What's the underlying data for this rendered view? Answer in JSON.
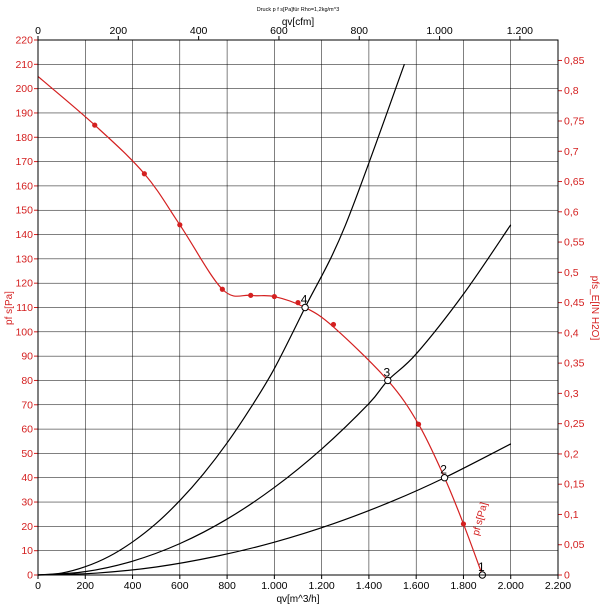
{
  "chart_data": {
    "type": "line",
    "title": "Druck p f s[Pa]für Rho=1,2kg/m^3",
    "xlabel": "qv[m^3/h]",
    "x2label": "qv[cfm]",
    "ylabel": "pf s[Pa]",
    "y2label": "pfs_E[IN H2O]",
    "xlim": [
      0,
      2200
    ],
    "ylim": [
      0,
      220
    ],
    "x2lim": [
      0,
      1294.9
    ],
    "y2lim": [
      0,
      0.8838
    ],
    "grid": true,
    "x_ticks": [
      "0",
      "200",
      "400",
      "600",
      "800",
      "1.000",
      "1.200",
      "1.400",
      "1.600",
      "1.800",
      "2.000",
      "2.200"
    ],
    "x2_ticks": [
      "0",
      "200",
      "400",
      "600",
      "800",
      "1.000",
      "1.200"
    ],
    "y_ticks": [
      "0",
      "10",
      "20",
      "30",
      "40",
      "50",
      "60",
      "70",
      "80",
      "90",
      "100",
      "110",
      "120",
      "130",
      "140",
      "150",
      "160",
      "170",
      "180",
      "190",
      "200",
      "210",
      "220"
    ],
    "y2_ticks": [
      "0",
      "0,05",
      "0,1",
      "0,15",
      "0,2",
      "0,25",
      "0,3",
      "0,35",
      "0,4",
      "0,45",
      "0,5",
      "0,55",
      "0,6",
      "0,65",
      "0,7",
      "0,75",
      "0,8",
      "0,85"
    ],
    "fan_curve": {
      "label": "pf s[Pa]",
      "color": "#d42020",
      "x": [
        0,
        240,
        450,
        600,
        780,
        900,
        1000,
        1130,
        1250,
        1480,
        1610,
        1720,
        1800,
        1880
      ],
      "y": [
        205,
        185,
        165,
        144,
        117.5,
        115,
        114.5,
        110,
        102,
        80,
        62,
        40,
        21,
        0
      ]
    },
    "fan_markers": {
      "x": [
        240,
        450,
        600,
        780,
        900,
        1000,
        1100,
        1250,
        1610,
        1800
      ],
      "y": [
        185,
        165,
        144,
        117.5,
        115,
        114.5,
        112,
        103,
        62,
        21
      ]
    },
    "system_curves": [
      {
        "x": [
          0,
          100,
          200,
          300,
          400,
          500,
          600,
          700,
          800,
          900,
          1000,
          1130,
          1300,
          1550
        ],
        "y": [
          0,
          0.8,
          3.4,
          7.6,
          13.6,
          21.2,
          30.6,
          41.6,
          54.3,
          68.8,
          84.9,
          110,
          143.7,
          210
        ]
      },
      {
        "x": [
          0,
          200,
          400,
          600,
          800,
          1000,
          1200,
          1400,
          1480,
          1600,
          1800,
          2000
        ],
        "y": [
          0,
          1.4,
          5.7,
          12.9,
          23,
          36,
          51.8,
          70.5,
          80,
          90.9,
          115.5,
          144
        ]
      },
      {
        "x": [
          0,
          250,
          500,
          750,
          1000,
          1250,
          1500,
          1720,
          2000
        ],
        "y": [
          0,
          0.8,
          3.3,
          7.6,
          13.5,
          21.1,
          30.4,
          40,
          53.9
        ]
      }
    ],
    "operating_points": [
      {
        "label": "1",
        "x": 1880,
        "y": 0
      },
      {
        "label": "2",
        "x": 1720,
        "y": 40
      },
      {
        "label": "3",
        "x": 1480,
        "y": 80
      },
      {
        "label": "4",
        "x": 1130,
        "y": 110
      }
    ]
  }
}
